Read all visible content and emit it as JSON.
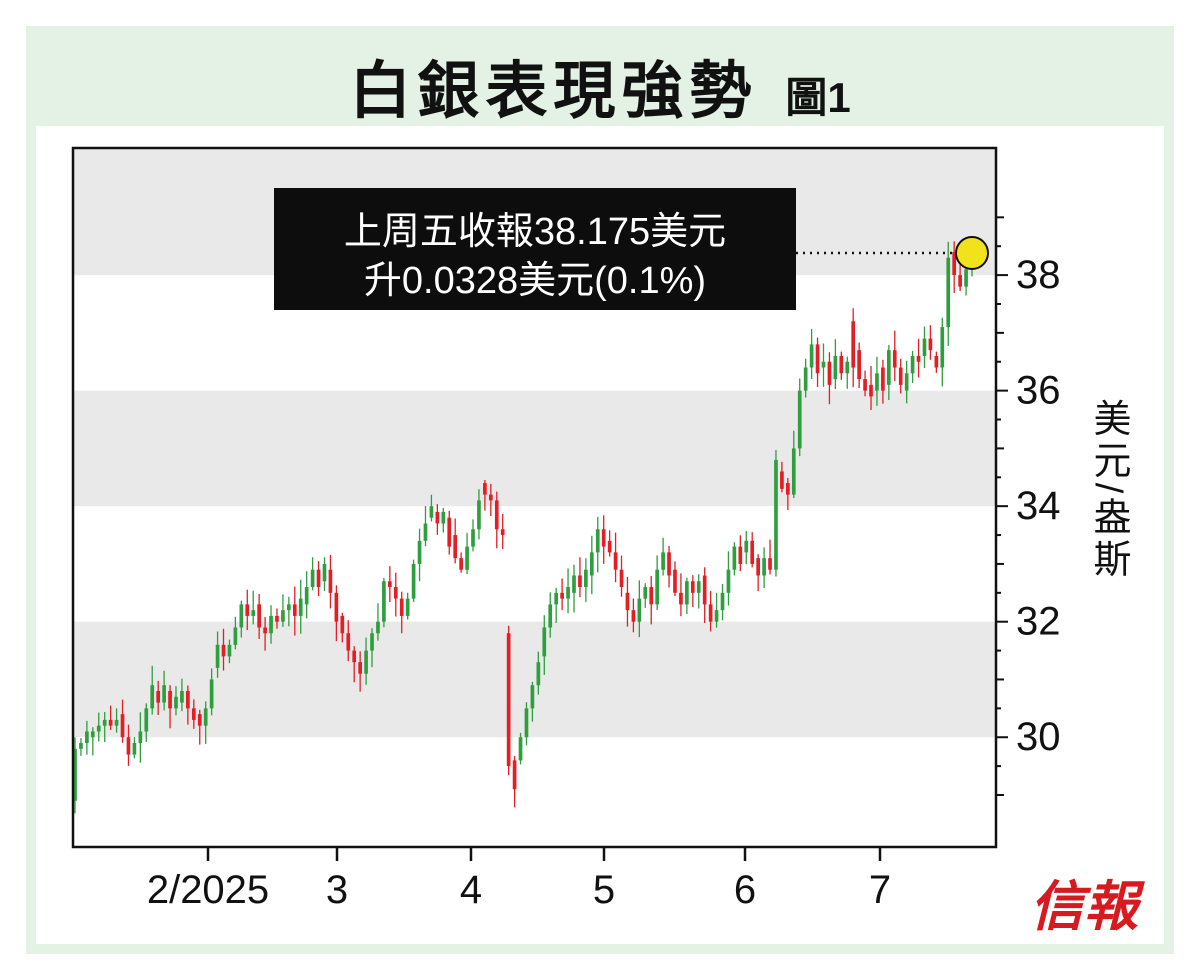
{
  "title": "白銀表現強勢",
  "figure_label": "圖1",
  "brand": "信報",
  "colors": {
    "up": "#2e9e3e",
    "down": "#e31e24",
    "band": "#e8e9e8",
    "highlight": "#f2e21c"
  },
  "chart_data": {
    "type": "candlestick",
    "ylabel": "美元/盎斯",
    "ylim": [
      28.1,
      40.2
    ],
    "y_ticks": [
      30,
      32,
      34,
      36,
      38
    ],
    "x_ticks": [
      "2/2025",
      "3",
      "4",
      "5",
      "6",
      "7"
    ],
    "grid": "alternating horizontal bands",
    "last_close": 38.175,
    "annotation": {
      "line1": "上周五收報38.175美元",
      "line2": "升0.0328美元(0.1%)"
    },
    "candles_approx": [
      [
        28.9,
        29.8
      ],
      [
        29.8,
        29.9
      ],
      [
        29.9,
        30.1
      ],
      [
        30.0,
        30.1
      ],
      [
        30.1,
        30.2
      ],
      [
        30.2,
        30.3
      ],
      [
        30.3,
        30.2
      ],
      [
        30.2,
        30.3
      ],
      [
        30.4,
        30.0
      ],
      [
        30.0,
        29.7
      ],
      [
        29.7,
        29.9
      ],
      [
        29.9,
        30.1
      ],
      [
        30.1,
        30.5
      ],
      [
        30.5,
        30.9
      ],
      [
        30.8,
        30.6
      ],
      [
        30.6,
        30.9
      ],
      [
        30.8,
        30.5
      ],
      [
        30.5,
        30.7
      ],
      [
        30.6,
        30.8
      ],
      [
        30.8,
        30.5
      ],
      [
        30.5,
        30.3
      ],
      [
        30.4,
        30.2
      ],
      [
        30.2,
        30.5
      ],
      [
        30.5,
        31.0
      ],
      [
        31.2,
        31.6
      ],
      [
        31.6,
        31.4
      ],
      [
        31.4,
        31.6
      ],
      [
        31.6,
        31.9
      ],
      [
        31.9,
        32.3
      ],
      [
        32.3,
        32.1
      ],
      [
        32.1,
        32.2
      ],
      [
        32.3,
        31.9
      ],
      [
        31.9,
        31.8
      ],
      [
        31.8,
        32.1
      ],
      [
        32.1,
        32.0
      ],
      [
        32.0,
        32.2
      ],
      [
        32.2,
        32.3
      ],
      [
        32.3,
        32.1
      ],
      [
        32.1,
        32.4
      ],
      [
        32.3,
        32.6
      ],
      [
        32.6,
        32.9
      ],
      [
        32.9,
        32.6
      ],
      [
        32.7,
        33.0
      ],
      [
        32.9,
        32.5
      ],
      [
        32.5,
        32.0
      ],
      [
        32.1,
        31.8
      ],
      [
        31.8,
        31.5
      ],
      [
        31.5,
        31.3
      ],
      [
        31.3,
        31.1
      ],
      [
        31.1,
        31.5
      ],
      [
        31.5,
        31.8
      ],
      [
        31.8,
        32.0
      ],
      [
        32.0,
        32.7
      ],
      [
        32.7,
        32.6
      ],
      [
        32.6,
        32.4
      ],
      [
        32.4,
        32.1
      ],
      [
        32.1,
        32.4
      ],
      [
        32.4,
        33.0
      ],
      [
        33.0,
        33.4
      ],
      [
        33.4,
        33.7
      ],
      [
        33.8,
        34.0
      ],
      [
        33.9,
        33.7
      ],
      [
        33.7,
        33.9
      ],
      [
        33.8,
        33.3
      ],
      [
        33.5,
        33.1
      ],
      [
        33.1,
        32.9
      ],
      [
        32.9,
        33.3
      ],
      [
        33.3,
        33.6
      ],
      [
        33.6,
        34.1
      ],
      [
        34.4,
        34.2
      ],
      [
        34.2,
        34.1
      ],
      [
        34.1,
        33.6
      ],
      [
        33.6,
        33.5
      ],
      [
        31.8,
        29.5
      ],
      [
        29.6,
        29.1
      ],
      [
        29.6,
        30.0
      ],
      [
        30.0,
        30.5
      ],
      [
        30.5,
        30.9
      ],
      [
        30.9,
        31.3
      ],
      [
        31.4,
        31.9
      ],
      [
        31.9,
        32.3
      ],
      [
        32.3,
        32.5
      ],
      [
        32.5,
        32.4
      ],
      [
        32.4,
        32.6
      ],
      [
        32.5,
        32.8
      ],
      [
        32.8,
        32.6
      ],
      [
        32.6,
        32.9
      ],
      [
        32.8,
        33.2
      ],
      [
        33.2,
        33.6
      ],
      [
        33.6,
        33.3
      ],
      [
        33.4,
        33.2
      ],
      [
        33.2,
        32.9
      ],
      [
        32.9,
        32.6
      ],
      [
        32.5,
        32.2
      ],
      [
        32.2,
        32.0
      ],
      [
        32.0,
        32.4
      ],
      [
        32.4,
        32.6
      ],
      [
        32.6,
        32.3
      ],
      [
        32.3,
        32.9
      ],
      [
        32.9,
        33.2
      ],
      [
        33.2,
        32.8
      ],
      [
        32.9,
        32.5
      ],
      [
        32.5,
        32.3
      ],
      [
        32.3,
        32.7
      ],
      [
        32.7,
        32.5
      ],
      [
        32.5,
        32.7
      ],
      [
        32.8,
        32.3
      ],
      [
        32.3,
        32.0
      ],
      [
        32.0,
        32.2
      ],
      [
        32.2,
        32.5
      ],
      [
        32.5,
        32.9
      ],
      [
        32.9,
        33.3
      ],
      [
        33.3,
        33.0
      ],
      [
        33.2,
        33.4
      ],
      [
        33.4,
        33.0
      ],
      [
        33.1,
        32.8
      ],
      [
        32.8,
        33.1
      ],
      [
        33.1,
        32.9
      ],
      [
        32.9,
        34.8
      ],
      [
        34.6,
        34.3
      ],
      [
        34.4,
        34.2
      ],
      [
        34.2,
        35.0
      ],
      [
        35.0,
        36.0
      ],
      [
        36.0,
        36.4
      ],
      [
        36.4,
        36.8
      ],
      [
        36.8,
        36.3
      ],
      [
        36.4,
        36.5
      ],
      [
        36.5,
        36.1
      ],
      [
        36.2,
        36.6
      ],
      [
        36.6,
        36.3
      ],
      [
        36.3,
        36.5
      ],
      [
        37.2,
        36.4
      ],
      [
        36.7,
        36.2
      ],
      [
        36.2,
        36.0
      ],
      [
        36.1,
        35.9
      ],
      [
        36.0,
        36.3
      ],
      [
        36.4,
        36.0
      ],
      [
        36.1,
        36.7
      ],
      [
        36.7,
        36.4
      ],
      [
        36.4,
        36.1
      ],
      [
        36.0,
        36.3
      ],
      [
        36.3,
        36.6
      ],
      [
        36.6,
        36.5
      ],
      [
        36.6,
        36.9
      ],
      [
        36.9,
        36.7
      ],
      [
        36.6,
        36.4
      ],
      [
        36.4,
        37.1
      ],
      [
        37.1,
        38.3
      ],
      [
        38.4,
        38.0
      ],
      [
        38.0,
        37.8
      ],
      [
        37.8,
        38.1
      ],
      [
        38.1,
        38.175
      ]
    ]
  }
}
